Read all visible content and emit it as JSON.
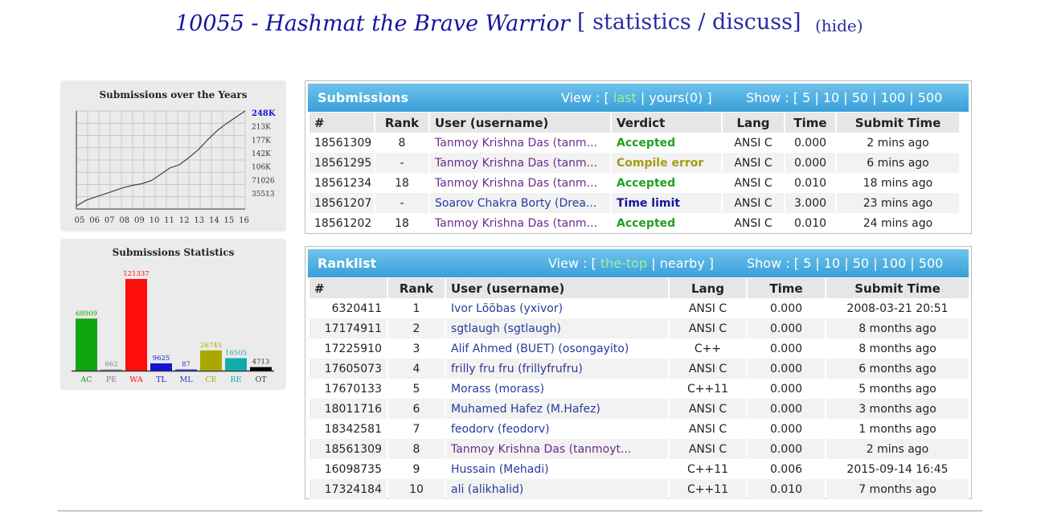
{
  "header": {
    "title": "10055 - Hashmat the Brave Warrior",
    "links_open": "[ ",
    "statistics": "statistics",
    "sep": " / ",
    "discuss": "discuss",
    "links_close": "]",
    "hide": "(hide)"
  },
  "years_chart": {
    "title": "Submissions over the Years",
    "y_ticks": [
      "248K",
      "213K",
      "177K",
      "142K",
      "106K",
      "71026",
      "35513"
    ],
    "x_ticks": [
      "05",
      "06",
      "07",
      "08",
      "09",
      "10",
      "11",
      "12",
      "13",
      "14",
      "15",
      "16"
    ],
    "values": [
      8000,
      22000,
      30000,
      38000,
      46000,
      54000,
      60000,
      64000,
      72000,
      88000,
      104000,
      112000,
      130000,
      150000,
      175000,
      198000,
      216000,
      232000,
      248000
    ]
  },
  "stats_chart": {
    "title": "Submissions Statistics",
    "categories": [
      "AC",
      "PE",
      "WA",
      "TL",
      "ML",
      "CE",
      "RE",
      "OT"
    ],
    "values": [
      68909,
      662,
      121337,
      9625,
      87,
      26745,
      16505,
      4713
    ],
    "colors": [
      "#11a511",
      "#808080",
      "#ff0d0d",
      "#1414d2",
      "#3232c8",
      "#a8a800",
      "#14aaaa",
      "#000000"
    ]
  },
  "submissions": {
    "title": "Submissions",
    "view_label": "View : [",
    "view_active": "last",
    "view_sep": "|",
    "view_other": "yours(0)",
    "view_close": "]",
    "show_label": "Show : [",
    "show_options": [
      "5",
      "10",
      "50",
      "100",
      "500"
    ],
    "columns": [
      "#",
      "Rank",
      "User (username)",
      "Verdict",
      "Lang",
      "Time",
      "Submit Time"
    ],
    "rows": [
      {
        "id": "18561309",
        "rank": "8",
        "user": "Tanmoy Krishna Das (tanm...",
        "verdict": "Accepted",
        "lang": "ANSI C",
        "time": "0.000",
        "submit": "2 mins ago"
      },
      {
        "id": "18561295",
        "rank": "-",
        "user": "Tanmoy Krishna Das (tanm...",
        "verdict": "Compile error",
        "lang": "ANSI C",
        "time": "0.000",
        "submit": "6 mins ago"
      },
      {
        "id": "18561234",
        "rank": "18",
        "user": "Tanmoy Krishna Das (tanm...",
        "verdict": "Accepted",
        "lang": "ANSI C",
        "time": "0.010",
        "submit": "18 mins ago"
      },
      {
        "id": "18561207",
        "rank": "-",
        "user": "Soarov Chakra Borty (Drea...",
        "verdict": "Time limit",
        "lang": "ANSI C",
        "time": "3.000",
        "submit": "23 mins ago"
      },
      {
        "id": "18561202",
        "rank": "18",
        "user": "Tanmoy Krishna Das (tanm...",
        "verdict": "Accepted",
        "lang": "ANSI C",
        "time": "0.010",
        "submit": "24 mins ago"
      }
    ]
  },
  "ranklist": {
    "title": "Ranklist",
    "view_label": "View : [",
    "view_active": "the-top",
    "view_sep": "|",
    "view_other": "nearby",
    "view_close": "]",
    "show_label": "Show : [",
    "show_options": [
      "5",
      "10",
      "50",
      "100",
      "500"
    ],
    "columns": [
      "#",
      "Rank",
      "User (username)",
      "Lang",
      "Time",
      "Submit Time"
    ],
    "rows": [
      {
        "id": "6320411",
        "rank": "1",
        "user": "Ivor Lõõbas (yxivor)",
        "lang": "ANSI C",
        "time": "0.000",
        "submit": "2008-03-21 20:51"
      },
      {
        "id": "17174911",
        "rank": "2",
        "user": "sgtlaugh (sgtlaugh)",
        "lang": "ANSI C",
        "time": "0.000",
        "submit": "8 months ago"
      },
      {
        "id": "17225910",
        "rank": "3",
        "user": "Alif Ahmed (BUET) (osongayito)",
        "lang": "C++",
        "time": "0.000",
        "submit": "8 months ago"
      },
      {
        "id": "17605073",
        "rank": "4",
        "user": "frilly fru fru (frillyfrufru)",
        "lang": "ANSI C",
        "time": "0.000",
        "submit": "6 months ago"
      },
      {
        "id": "17670133",
        "rank": "5",
        "user": "Morass (morass)",
        "lang": "C++11",
        "time": "0.000",
        "submit": "5 months ago"
      },
      {
        "id": "18011716",
        "rank": "6",
        "user": "Muhamed Hafez (M.Hafez)",
        "lang": "ANSI C",
        "time": "0.000",
        "submit": "3 months ago"
      },
      {
        "id": "18342581",
        "rank": "7",
        "user": "feodorv (feodorv)",
        "lang": "ANSI C",
        "time": "0.000",
        "submit": "1 months ago"
      },
      {
        "id": "18561309",
        "rank": "8",
        "user": "Tanmoy Krishna Das (tanmoyt...",
        "lang": "ANSI C",
        "time": "0.000",
        "submit": "2 mins ago"
      },
      {
        "id": "16098735",
        "rank": "9",
        "user": "Hussain (Mehadi)",
        "lang": "C++11",
        "time": "0.006",
        "submit": "2015-09-14 16:45"
      },
      {
        "id": "17324184",
        "rank": "10",
        "user": "ali (alikhalid)",
        "lang": "C++11",
        "time": "0.010",
        "submit": "7 months ago"
      }
    ]
  }
}
